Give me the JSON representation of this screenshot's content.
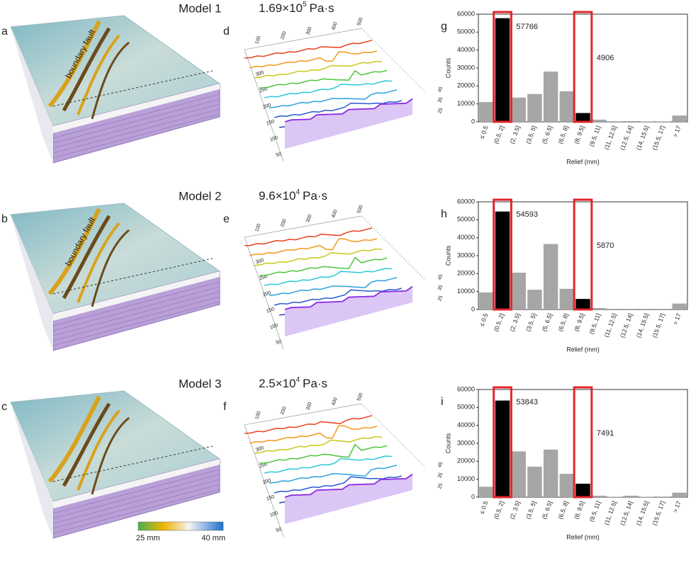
{
  "models": [
    {
      "title": "Model 1",
      "viscosity": "1.69×10",
      "exponent": "5",
      "unit": "Pa·s",
      "map_label": "a",
      "fault_label": "boundary fault"
    },
    {
      "title": "Model 2",
      "viscosity": "9.6×10",
      "exponent": "4",
      "unit": "Pa·s",
      "map_label": "b",
      "fault_label": "boundary fault"
    },
    {
      "title": "Model 3",
      "viscosity": "2.5×10",
      "exponent": "4",
      "unit": "Pa·s",
      "map_label": "c"
    }
  ],
  "profiles": [
    {
      "label": "d",
      "top": [
        "100",
        "200",
        "300",
        "400",
        "500"
      ],
      "left": [
        "300",
        "250",
        "200",
        "150",
        "100",
        "50"
      ],
      "right": [
        "45",
        "35",
        "25"
      ]
    },
    {
      "label": "e",
      "top": [
        "100",
        "200",
        "300",
        "400",
        "500"
      ],
      "left": [
        "300",
        "250",
        "200",
        "150",
        "100",
        "50"
      ],
      "right": [
        "45",
        "35",
        "25"
      ]
    },
    {
      "label": "f",
      "top": [
        "100",
        "200",
        "300",
        "400",
        "500"
      ],
      "left": [
        "300",
        "250",
        "200",
        "150",
        "100",
        "50"
      ],
      "right": [
        "45",
        "35",
        "25"
      ]
    }
  ],
  "colorbar": {
    "min_label": "25 mm",
    "max_label": "40 mm"
  },
  "chart_data": [
    {
      "type": "bar",
      "label": "g",
      "xlabel": "Relief (mm)",
      "ylabel": "Counts",
      "categories": [
        "≤ 0.5",
        "(0.5, 2]",
        "(2, 3.5]",
        "(3.5, 5]",
        "(5, 6.5]",
        "(6.5, 8]",
        "(8, 9.5]",
        "(9.5, 11]",
        "(11, 12.5]",
        "(12.5, 14]",
        "(14, 15.5]",
        "(15.5, 17]",
        "> 17"
      ],
      "values": [
        11000,
        57766,
        13500,
        15500,
        28000,
        17000,
        4906,
        1200,
        300,
        400,
        200,
        200,
        3500
      ],
      "colors": [
        "#a6a6a6",
        "#000000",
        "#a6a6a6",
        "#a6a6a6",
        "#a6a6a6",
        "#a6a6a6",
        "#000000",
        "#a6a6a6",
        "#a6a6a6",
        "#a6a6a6",
        "#a6a6a6",
        "#a6a6a6",
        "#a6a6a6"
      ],
      "highlight": [
        1,
        6
      ],
      "ylim": [
        0,
        60000
      ],
      "yticks": [
        0,
        10000,
        20000,
        30000,
        40000,
        50000,
        60000
      ]
    },
    {
      "type": "bar",
      "label": "h",
      "xlabel": "Relief (mm)",
      "ylabel": "Counts",
      "categories": [
        "≤ 0.5",
        "(0.5, 2]",
        "(2, 3.5]",
        "(3.5, 5]",
        "(5, 6.5]",
        "(6.5, 8]",
        "(8, 9.5]",
        "(9.5, 11]",
        "(11, 12.5]",
        "(12.5, 14]",
        "(14, 15.5]",
        "(15.5, 17]",
        "> 17"
      ],
      "values": [
        9500,
        54593,
        20500,
        11000,
        36500,
        11500,
        5870,
        800,
        100,
        100,
        100,
        100,
        3300
      ],
      "colors": [
        "#a6a6a6",
        "#000000",
        "#a6a6a6",
        "#a6a6a6",
        "#a6a6a6",
        "#a6a6a6",
        "#000000",
        "#a6a6a6",
        "#a6a6a6",
        "#a6a6a6",
        "#a6a6a6",
        "#a6a6a6",
        "#a6a6a6"
      ],
      "highlight": [
        1,
        6
      ],
      "ylim": [
        0,
        60000
      ],
      "yticks": [
        0,
        10000,
        20000,
        30000,
        40000,
        50000,
        60000
      ]
    },
    {
      "type": "bar",
      "label": "i",
      "xlabel": "Relief (mm)",
      "ylabel": "Counts",
      "categories": [
        "≤ 0.5",
        "(0.5, 2]",
        "(2, 3.5]",
        "(3.5, 5]",
        "(5, 6.5]",
        "(6.5, 8]",
        "(8, 9.5]",
        "(9.5, 11]",
        "(11, 12.5]",
        "(12.5, 14]",
        "(14, 15.5]",
        "(15.5, 17]",
        "> 17"
      ],
      "values": [
        5800,
        53843,
        25500,
        17000,
        26500,
        13000,
        7491,
        800,
        200,
        800,
        200,
        100,
        2500
      ],
      "colors": [
        "#a6a6a6",
        "#000000",
        "#a6a6a6",
        "#a6a6a6",
        "#a6a6a6",
        "#a6a6a6",
        "#000000",
        "#a6a6a6",
        "#a6a6a6",
        "#a6a6a6",
        "#a6a6a6",
        "#a6a6a6",
        "#a6a6a6"
      ],
      "highlight": [
        1,
        6
      ],
      "ylim": [
        0,
        60000
      ],
      "yticks": [
        0,
        10000,
        20000,
        30000,
        40000,
        50000,
        60000
      ]
    }
  ]
}
